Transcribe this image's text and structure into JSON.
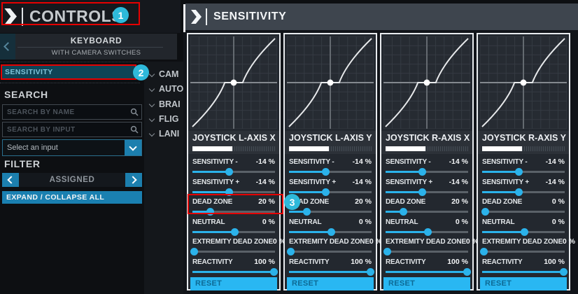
{
  "sidebar": {
    "title": "CONTROLS",
    "device": {
      "name": "KEYBOARD",
      "subtitle": "WITH CAMERA SWITCHES"
    },
    "nav": {
      "selected": "SENSITIVITY"
    },
    "search": {
      "heading": "SEARCH",
      "by_name_placeholder": "SEARCH BY NAME",
      "by_input_placeholder": "SEARCH BY INPUT",
      "input_select_value": "Select an input"
    },
    "filter": {
      "heading": "FILTER",
      "value": "ASSIGNED"
    },
    "expand_collapse_label": "EXPAND / COLLAPSE ALL"
  },
  "categories": [
    {
      "label": "CAM"
    },
    {
      "label": "AUTO"
    },
    {
      "label": "BRAI"
    },
    {
      "label": "FLIG"
    },
    {
      "label": "LANI"
    }
  ],
  "panel": {
    "title": "SENSITIVITY",
    "columns": [
      {
        "title": "JOYSTICK L-AXIS X",
        "input_bar_pct": 48,
        "rows": [
          {
            "label": "SENSITIVITY -",
            "value": "-14 %",
            "pct": 44
          },
          {
            "label": "SENSITIVITY +",
            "value": "-14 %",
            "pct": 44
          },
          {
            "label": "DEAD ZONE",
            "value": "20 %",
            "pct": 21
          },
          {
            "label": "NEUTRAL",
            "value": "0 %",
            "pct": 51
          },
          {
            "label": "EXTREMITY DEAD ZONE",
            "value": "0 %",
            "pct": 2
          },
          {
            "label": "REACTIVITY",
            "value": "100 %",
            "pct": 98
          }
        ],
        "reset_label": "RESET"
      },
      {
        "title": "JOYSTICK L-AXIS Y",
        "input_bar_pct": 48,
        "rows": [
          {
            "label": "SENSITIVITY -",
            "value": "-14 %",
            "pct": 44
          },
          {
            "label": "SENSITIVITY +",
            "value": "-14 %",
            "pct": 44
          },
          {
            "label": "DEAD ZONE",
            "value": "20 %",
            "pct": 21
          },
          {
            "label": "NEUTRAL",
            "value": "0 %",
            "pct": 51
          },
          {
            "label": "EXTREMITY DEAD ZONE",
            "value": "0 %",
            "pct": 2
          },
          {
            "label": "REACTIVITY",
            "value": "100 %",
            "pct": 98
          }
        ],
        "reset_label": "RESET"
      },
      {
        "title": "JOYSTICK R-AXIS X",
        "input_bar_pct": 48,
        "rows": [
          {
            "label": "SENSITIVITY -",
            "value": "-14 %",
            "pct": 44
          },
          {
            "label": "SENSITIVITY +",
            "value": "-14 %",
            "pct": 44
          },
          {
            "label": "DEAD ZONE",
            "value": "20 %",
            "pct": 21
          },
          {
            "label": "NEUTRAL",
            "value": "0 %",
            "pct": 51
          },
          {
            "label": "EXTREMITY DEAD ZONE",
            "value": "0 %",
            "pct": 2
          },
          {
            "label": "REACTIVITY",
            "value": "100 %",
            "pct": 98
          }
        ],
        "reset_label": "RESET"
      },
      {
        "title": "JOYSTICK R-AXIS Y",
        "input_bar_pct": 48,
        "rows": [
          {
            "label": "SENSITIVITY -",
            "value": "-14 %",
            "pct": 44
          },
          {
            "label": "SENSITIVITY +",
            "value": "-14 %",
            "pct": 44
          },
          {
            "label": "DEAD ZONE",
            "value": "0 %",
            "pct": 3
          },
          {
            "label": "NEUTRAL",
            "value": "0 %",
            "pct": 51
          },
          {
            "label": "EXTREMITY DEAD ZONE",
            "value": "0 %",
            "pct": 2
          },
          {
            "label": "REACTIVITY",
            "value": "100 %",
            "pct": 98
          }
        ],
        "reset_label": "RESET"
      }
    ]
  },
  "annotations": {
    "step1": "1",
    "step2": "2",
    "step3": "3",
    "box_color": "#e60000",
    "badge_color": "#2eb9da"
  },
  "colors": {
    "accent": "#2bb2ea",
    "button_blue": "#1c7fae",
    "reset_bg": "#29b7f2"
  }
}
